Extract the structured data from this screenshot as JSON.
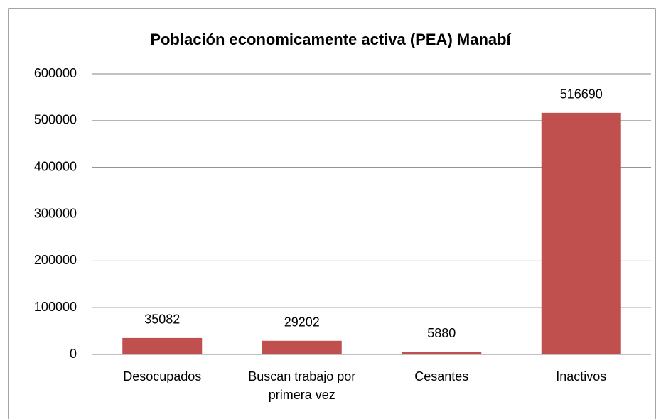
{
  "chart_data": {
    "type": "bar",
    "title": "Población economicamente activa (PEA) Manabí",
    "categories": [
      "Desocupados",
      "Buscan trabajo por primera vez",
      "Cesantes",
      "Inactivos"
    ],
    "values": [
      35082,
      29202,
      5880,
      516690
    ],
    "color": "#c0504d",
    "ylim": [
      0,
      600000
    ],
    "yticks": [
      0,
      100000,
      200000,
      300000,
      400000,
      500000,
      600000
    ],
    "grid": true
  }
}
